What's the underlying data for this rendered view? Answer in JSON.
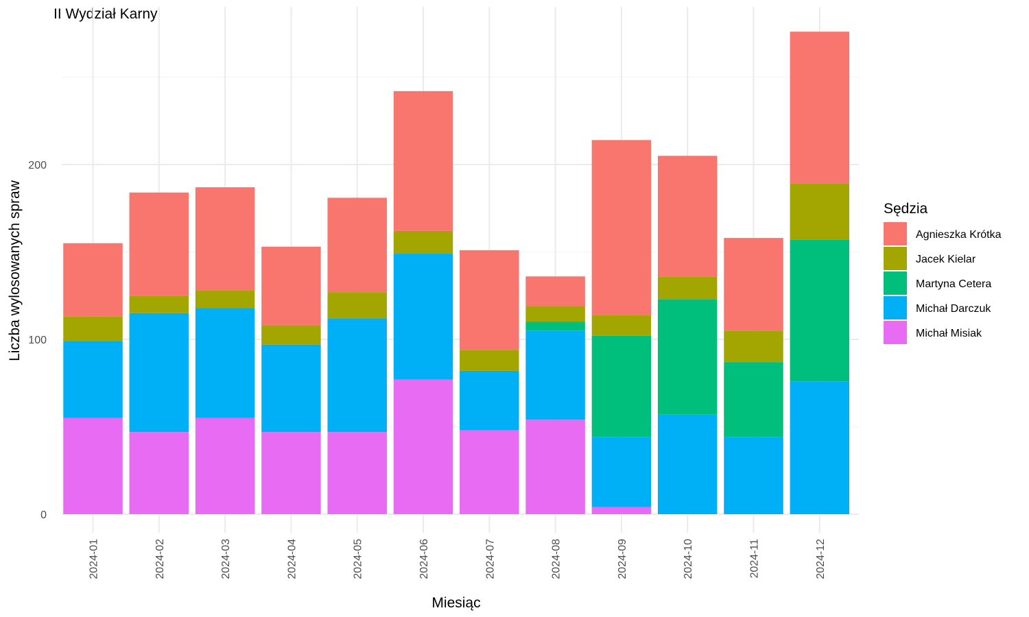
{
  "chart_data": {
    "type": "bar",
    "stacked": true,
    "title": "II Wydział Karny",
    "xlabel": "Miesiąc",
    "ylabel": "Liczba wylosowanych spraw",
    "ylim": [
      -10,
      279
    ],
    "yticks": [
      0,
      100,
      200
    ],
    "grid": true,
    "legend": {
      "title": "Sędzia",
      "position": "right"
    },
    "categories": [
      "2024-01",
      "2024-02",
      "2024-03",
      "2024-04",
      "2024-05",
      "2024-06",
      "2024-07",
      "2024-08",
      "2024-09",
      "2024-10",
      "2024-11",
      "2024-12"
    ],
    "series": [
      {
        "name": "Michał Misiak",
        "color": "#E76BF3",
        "values": [
          55,
          47,
          55,
          47,
          47,
          77,
          48,
          54,
          4,
          0,
          0,
          0
        ]
      },
      {
        "name": "Michał Darczuk",
        "color": "#00B0F6",
        "values": [
          44,
          68,
          63,
          50,
          65,
          72,
          34,
          51,
          40,
          57,
          44,
          76
        ]
      },
      {
        "name": "Martyna Cetera",
        "color": "#00BF7D",
        "values": [
          0,
          0,
          0,
          0,
          0,
          0,
          0,
          5,
          58,
          66,
          43,
          81
        ]
      },
      {
        "name": "Jacek Kielar",
        "color": "#A3A500",
        "values": [
          14,
          10,
          10,
          11,
          15,
          13,
          12,
          9,
          12,
          13,
          18,
          32
        ]
      },
      {
        "name": "Agnieszka Krótka",
        "color": "#F8766D",
        "values": [
          42,
          59,
          59,
          45,
          54,
          80,
          57,
          17,
          100,
          69,
          53,
          87
        ]
      }
    ],
    "legend_order": [
      "Agnieszka Krótka",
      "Jacek Kielar",
      "Martyna Cetera",
      "Michał Darczuk",
      "Michał Misiak"
    ]
  }
}
